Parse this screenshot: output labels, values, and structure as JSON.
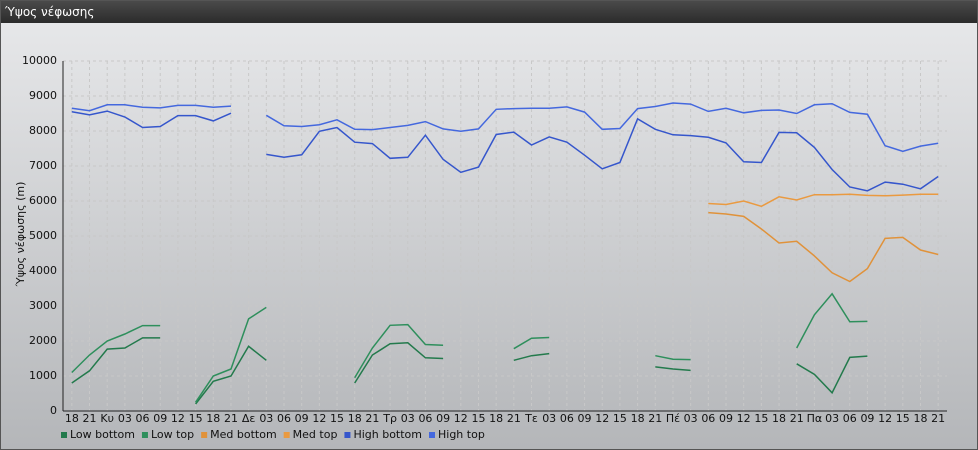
{
  "chart_data": {
    "type": "line",
    "title": "Ύψος νέφωσης",
    "ylabel": "Ύψος νέφωσης (m)",
    "categories": [
      "18",
      "21",
      "Κυ",
      "03",
      "06",
      "09",
      "12",
      "15",
      "18",
      "21",
      "Δε",
      "03",
      "06",
      "09",
      "12",
      "15",
      "18",
      "21",
      "Τρ",
      "03",
      "06",
      "09",
      "12",
      "15",
      "18",
      "21",
      "Τε",
      "03",
      "06",
      "09",
      "12",
      "15",
      "18",
      "21",
      "Πέ",
      "03",
      "06",
      "09",
      "12",
      "15",
      "18",
      "21",
      "Πα",
      "03",
      "06",
      "09",
      "12",
      "15",
      "18",
      "21"
    ],
    "ylim": [
      0,
      10000
    ],
    "yticks": [
      0,
      1000,
      2000,
      3000,
      4000,
      5000,
      6000,
      7000,
      8000,
      9000,
      10000
    ],
    "grid": true,
    "series": [
      {
        "name": "Low bottom",
        "color": "#237a4c",
        "values": [
          800,
          1150,
          1770,
          1800,
          2090,
          2090,
          null,
          200,
          850,
          1000,
          1850,
          1450,
          null,
          null,
          null,
          null,
          800,
          1600,
          1920,
          1950,
          1520,
          1500,
          null,
          null,
          null,
          1450,
          1580,
          1640,
          null,
          null,
          null,
          null,
          null,
          1260,
          1200,
          1160,
          null,
          null,
          null,
          null,
          null,
          1350,
          1050,
          520,
          1530,
          1570,
          null,
          null,
          null,
          null
        ]
      },
      {
        "name": "Low top",
        "color": "#2e8f5c",
        "values": [
          1100,
          1600,
          2000,
          2200,
          2440,
          2440,
          null,
          250,
          1000,
          1200,
          2630,
          2960,
          null,
          null,
          null,
          null,
          950,
          1800,
          2450,
          2470,
          1900,
          1880,
          null,
          null,
          null,
          1780,
          2080,
          2100,
          null,
          null,
          null,
          null,
          null,
          1580,
          1480,
          1470,
          null,
          null,
          null,
          null,
          null,
          1800,
          2750,
          3350,
          2550,
          2560,
          null,
          null,
          null,
          null
        ]
      },
      {
        "name": "Med bottom",
        "color": "#e0923a",
        "values": [
          null,
          null,
          null,
          null,
          null,
          null,
          null,
          null,
          null,
          null,
          null,
          null,
          null,
          null,
          null,
          null,
          null,
          null,
          null,
          null,
          null,
          null,
          null,
          null,
          null,
          null,
          null,
          null,
          null,
          null,
          null,
          null,
          null,
          null,
          null,
          null,
          5670,
          5630,
          5560,
          5200,
          4800,
          4850,
          4430,
          3950,
          3700,
          4070,
          4930,
          4960,
          4600,
          4470
        ]
      },
      {
        "name": "Med top",
        "color": "#ea9a40",
        "values": [
          null,
          null,
          null,
          null,
          null,
          null,
          null,
          null,
          null,
          null,
          null,
          null,
          null,
          null,
          null,
          null,
          null,
          null,
          null,
          null,
          null,
          null,
          null,
          null,
          null,
          null,
          null,
          null,
          null,
          null,
          null,
          null,
          null,
          null,
          null,
          null,
          5930,
          5900,
          6000,
          5850,
          6120,
          6030,
          6180,
          6180,
          6190,
          6160,
          6150,
          6170,
          6190,
          6190
        ]
      },
      {
        "name": "High bottom",
        "color": "#3556cc",
        "values": [
          8550,
          8460,
          8570,
          8400,
          8100,
          8130,
          8440,
          8440,
          8290,
          8510,
          null,
          7330,
          7250,
          7320,
          7990,
          8100,
          7680,
          7640,
          7220,
          7250,
          7880,
          7190,
          6820,
          6970,
          7900,
          7970,
          7600,
          7830,
          7680,
          7310,
          6920,
          7100,
          8350,
          8050,
          7890,
          7870,
          7820,
          7660,
          7120,
          7100,
          7960,
          7950,
          7530,
          6900,
          6400,
          6290,
          6540,
          6480,
          6350,
          6700
        ]
      },
      {
        "name": "High top",
        "color": "#4468de",
        "values": [
          8650,
          8580,
          8750,
          8750,
          8680,
          8660,
          8730,
          8730,
          8680,
          8710,
          null,
          8450,
          8150,
          8130,
          8180,
          8320,
          8050,
          8040,
          8100,
          8160,
          8270,
          8060,
          7990,
          8060,
          8620,
          8640,
          8650,
          8650,
          8690,
          8540,
          8050,
          8070,
          8640,
          8700,
          8800,
          8770,
          8560,
          8650,
          8520,
          8590,
          8600,
          8500,
          8750,
          8780,
          8530,
          8480,
          7580,
          7420,
          7570,
          7650
        ]
      }
    ]
  }
}
